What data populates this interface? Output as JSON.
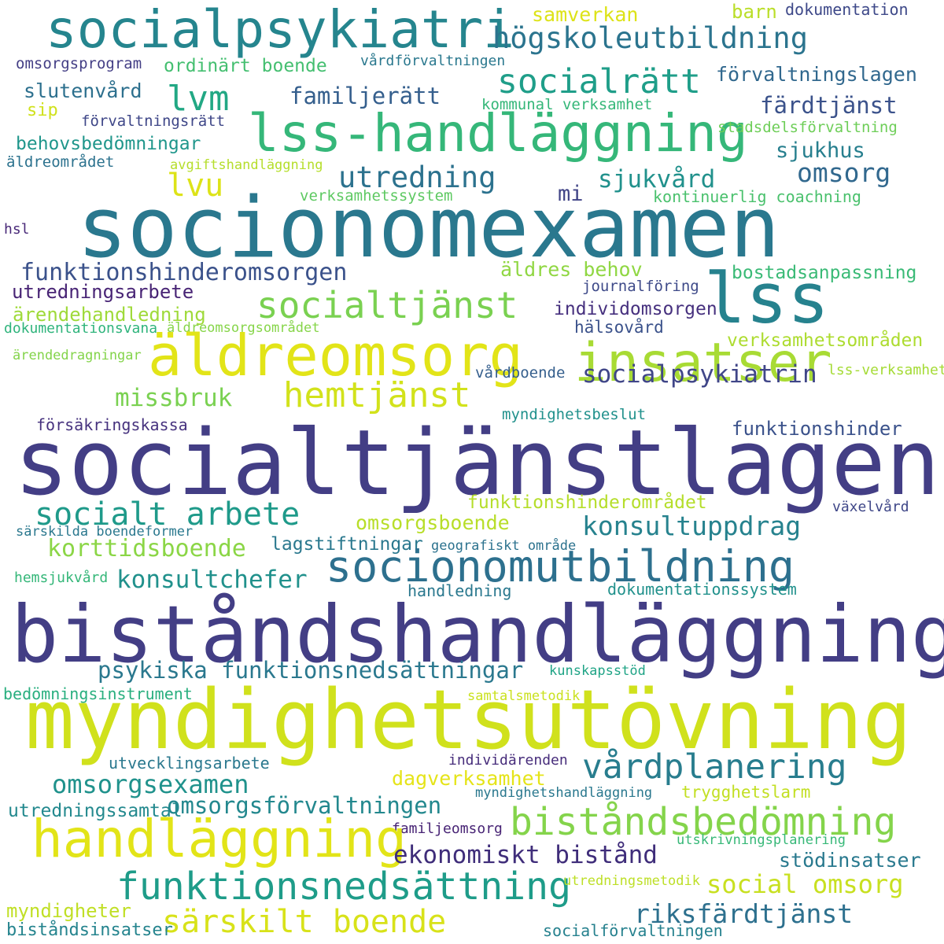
{
  "words": [
    {
      "text": "socialpsykiatri",
      "color": "#25858e"
    },
    {
      "text": "samverkan",
      "color": "#dde318"
    },
    {
      "text": "barn",
      "color": "#bade28"
    },
    {
      "text": "dokumentation",
      "color": "#3e4989"
    },
    {
      "text": "högskoleutbildning",
      "color": "#2b748e"
    },
    {
      "text": "omsorgsprogram",
      "color": "#433e85"
    },
    {
      "text": "ordinärt boende",
      "color": "#44bf70"
    },
    {
      "text": "vårdförvaltningen",
      "color": "#2a788e"
    },
    {
      "text": "förvaltningslagen",
      "color": "#31688e"
    },
    {
      "text": "socialrätt",
      "color": "#1f9e89"
    },
    {
      "text": "lvm",
      "color": "#22a884"
    },
    {
      "text": "slutenvård",
      "color": "#2d708e"
    },
    {
      "text": "familjerätt",
      "color": "#355f8d"
    },
    {
      "text": "kommunal verksamhet",
      "color": "#35b779"
    },
    {
      "text": "färdtjänst",
      "color": "#3b528b"
    },
    {
      "text": "sip",
      "color": "#d0e11c"
    },
    {
      "text": "förvaltningsrätt",
      "color": "#3f4788"
    },
    {
      "text": "lss-handläggning",
      "color": "#35b779"
    },
    {
      "text": "stadsdelsförvaltning",
      "color": "#6ece58"
    },
    {
      "text": "behovsbedömningar",
      "color": "#1f968b"
    },
    {
      "text": "sjukhus",
      "color": "#277f8e"
    },
    {
      "text": "äldreområdet",
      "color": "#2c728e"
    },
    {
      "text": "avgiftshandläggning",
      "color": "#b5de2b"
    },
    {
      "text": "utredning",
      "color": "#2c728e"
    },
    {
      "text": "omsorg",
      "color": "#31688e"
    },
    {
      "text": "lvu",
      "color": "#dde318"
    },
    {
      "text": "mi",
      "color": "#414487"
    },
    {
      "text": "sjukvård",
      "color": "#21918c"
    },
    {
      "text": "verksamhetssystem",
      "color": "#5ec962"
    },
    {
      "text": "kontinuerlig coachning",
      "color": "#4ac16d"
    },
    {
      "text": "hsl",
      "color": "#482878"
    },
    {
      "text": "socionomexamen",
      "color": "#2a788e"
    },
    {
      "text": "lss",
      "color": "#26828e"
    },
    {
      "text": "funktionshinderomsorgen",
      "color": "#3b528b"
    },
    {
      "text": "äldres behov",
      "color": "#90d743"
    },
    {
      "text": "bostadsanpassning",
      "color": "#3aba76"
    },
    {
      "text": "journalföring",
      "color": "#3e4a89"
    },
    {
      "text": "utredningsarbete",
      "color": "#482475"
    },
    {
      "text": "socialtjänst",
      "color": "#7ad151"
    },
    {
      "text": "individomsorgen",
      "color": "#46307e"
    },
    {
      "text": "ärendehandledning",
      "color": "#9fda3a"
    },
    {
      "text": "hälsovård",
      "color": "#3b528b"
    },
    {
      "text": "dokumentationsvana",
      "color": "#2fb47c"
    },
    {
      "text": "äldreomsorgsområdet",
      "color": "#86d549"
    },
    {
      "text": "verksamhetsområden",
      "color": "#addc30"
    },
    {
      "text": "äldreomsorg",
      "color": "#e2e418"
    },
    {
      "text": "insatser",
      "color": "#a8db34"
    },
    {
      "text": "ärendedragningar",
      "color": "#84d44b"
    },
    {
      "text": "lss-verksamhet",
      "color": "#a5db36"
    },
    {
      "text": "hemtjänst",
      "color": "#d2e21b"
    },
    {
      "text": "missbruk",
      "color": "#7ad151"
    },
    {
      "text": "vårdboende",
      "color": "#355f8d"
    },
    {
      "text": "socialpsykiatrin",
      "color": "#404688"
    },
    {
      "text": "myndighetsbeslut",
      "color": "#21918c"
    },
    {
      "text": "försäkringskassa",
      "color": "#46327e"
    },
    {
      "text": "funktionshinder",
      "color": "#3b528b"
    },
    {
      "text": "socialtjänstlagen",
      "color": "#433e85"
    },
    {
      "text": "funktionshinderområdet",
      "color": "#b5de2b"
    },
    {
      "text": "växelvård",
      "color": "#3f4788"
    },
    {
      "text": "socialt arbete",
      "color": "#1f9a8a"
    },
    {
      "text": "omsorgsboende",
      "color": "#b8de29"
    },
    {
      "text": "konsultuppdrag",
      "color": "#26828e"
    },
    {
      "text": "särskilda boendeformer",
      "color": "#2a788e"
    },
    {
      "text": "korttidsboende",
      "color": "#8bd646"
    },
    {
      "text": "lagstiftningar",
      "color": "#2a788e"
    },
    {
      "text": "geografiskt område",
      "color": "#2c728e"
    },
    {
      "text": "socionomutbildning",
      "color": "#2d708e"
    },
    {
      "text": "hemsjukvård",
      "color": "#35b779"
    },
    {
      "text": "konsultchefer",
      "color": "#21918c"
    },
    {
      "text": "handledning",
      "color": "#2a788e"
    },
    {
      "text": "dokumentationssystem",
      "color": "#21918c"
    },
    {
      "text": "biståndshandläggning",
      "color": "#433e85"
    },
    {
      "text": "psykiska funktionsnedsättningar",
      "color": "#2a788e"
    },
    {
      "text": "kunskapsstöd",
      "color": "#20a486"
    },
    {
      "text": "bedömningsinstrument",
      "color": "#29af7f"
    },
    {
      "text": "samtalsmetodik",
      "color": "#cae11f"
    },
    {
      "text": "myndighetsutövning",
      "color": "#d0e11c"
    },
    {
      "text": "utvecklingsarbete",
      "color": "#2a788e"
    },
    {
      "text": "individärenden",
      "color": "#472d7b"
    },
    {
      "text": "vårdplanering",
      "color": "#287d8e"
    },
    {
      "text": "omsorgsexamen",
      "color": "#20928c"
    },
    {
      "text": "dagverksamhet",
      "color": "#e5e419"
    },
    {
      "text": "myndighetshandläggning",
      "color": "#2a788e"
    },
    {
      "text": "trygghetslarm",
      "color": "#c2df23"
    },
    {
      "text": "omsorgsförvaltningen",
      "color": "#23888e"
    },
    {
      "text": "utredningssamtal",
      "color": "#23898e"
    },
    {
      "text": "biståndsbedömning",
      "color": "#84d44b"
    },
    {
      "text": "familjeomsorg",
      "color": "#482475"
    },
    {
      "text": "utskrivningsplanering",
      "color": "#37b878"
    },
    {
      "text": "handläggning",
      "color": "#e2e418"
    },
    {
      "text": "ekonomiskt bistånd",
      "color": "#3f2d7a"
    },
    {
      "text": "stödinsatser",
      "color": "#29798e"
    },
    {
      "text": "funktionsnedsättning",
      "color": "#1e9c89"
    },
    {
      "text": "utredningsmetodik",
      "color": "#bddf26"
    },
    {
      "text": "social omsorg",
      "color": "#c8e020"
    },
    {
      "text": "myndigheter",
      "color": "#c0df25"
    },
    {
      "text": "särskilt boende",
      "color": "#d8e219"
    },
    {
      "text": "riksfärdtjänst",
      "color": "#2d708e"
    },
    {
      "text": "biståndsinsatser",
      "color": "#25848e"
    },
    {
      "text": "socialförvaltningen",
      "color": "#26818e"
    }
  ]
}
